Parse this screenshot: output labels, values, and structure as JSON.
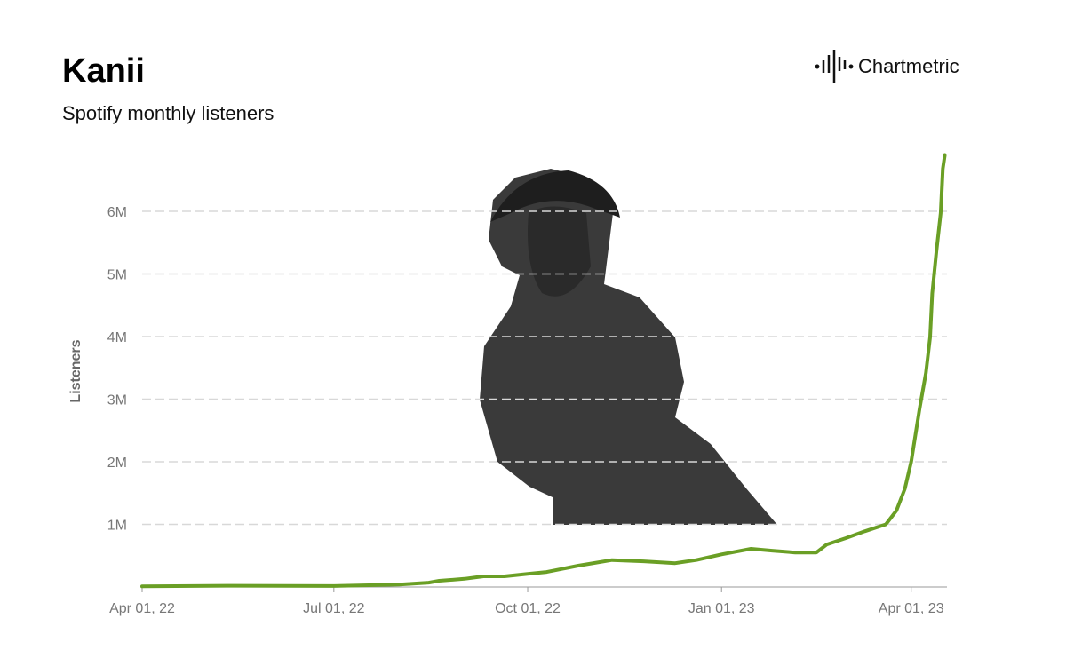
{
  "chart_data": {
    "type": "line",
    "title": "Kanii",
    "subtitle": "Spotify monthly listeners",
    "logo_text": "Chartmetric",
    "y_label": "Listeners",
    "x": [
      "2022-04-01",
      "2022-05-15",
      "2022-07-01",
      "2022-08-01",
      "2022-08-15",
      "2022-08-20",
      "2022-09-01",
      "2022-09-10",
      "2022-09-20",
      "2022-10-01",
      "2022-10-10",
      "2022-10-25",
      "2022-11-10",
      "2022-11-25",
      "2022-12-10",
      "2022-12-20",
      "2023-01-01",
      "2023-01-15",
      "2023-01-25",
      "2023-02-05",
      "2023-02-15",
      "2023-02-20",
      "2023-03-01",
      "2023-03-10",
      "2023-03-20",
      "2023-03-25",
      "2023-03-29",
      "2023-04-01",
      "2023-04-05",
      "2023-04-08",
      "2023-04-10",
      "2023-04-11",
      "2023-04-13",
      "2023-04-15",
      "2023-04-16",
      "2023-04-17"
    ],
    "series": [
      {
        "name": "Listeners",
        "color": "#6a9f25",
        "values": [
          10000,
          20000,
          15000,
          40000,
          70000,
          100000,
          130000,
          170000,
          170000,
          210000,
          240000,
          340000,
          430000,
          410000,
          380000,
          430000,
          520000,
          610000,
          580000,
          550000,
          550000,
          680000,
          780000,
          890000,
          1000000,
          1220000,
          1570000,
          2000000,
          2850000,
          3420000,
          3990000,
          4690000,
          5360000,
          5970000,
          6680000,
          6900000
        ]
      }
    ],
    "xlim": [
      "2022-04-01",
      "2023-04-18"
    ],
    "xticks": [
      {
        "value": "2022-04-01",
        "label": "Apr 01, 22"
      },
      {
        "value": "2022-07-01",
        "label": "Jul 01, 22"
      },
      {
        "value": "2022-10-01",
        "label": "Oct 01, 22"
      },
      {
        "value": "2023-01-01",
        "label": "Jan 01, 23"
      },
      {
        "value": "2023-04-01",
        "label": "Apr 01, 23"
      }
    ],
    "ylim": [
      0,
      7000000
    ],
    "yticks": [
      {
        "value": 1000000,
        "label": "1M"
      },
      {
        "value": 2000000,
        "label": "2M"
      },
      {
        "value": 3000000,
        "label": "3M"
      },
      {
        "value": 4000000,
        "label": "4M"
      },
      {
        "value": 5000000,
        "label": "5M"
      },
      {
        "value": 6000000,
        "label": "6M"
      }
    ],
    "grid": true
  }
}
